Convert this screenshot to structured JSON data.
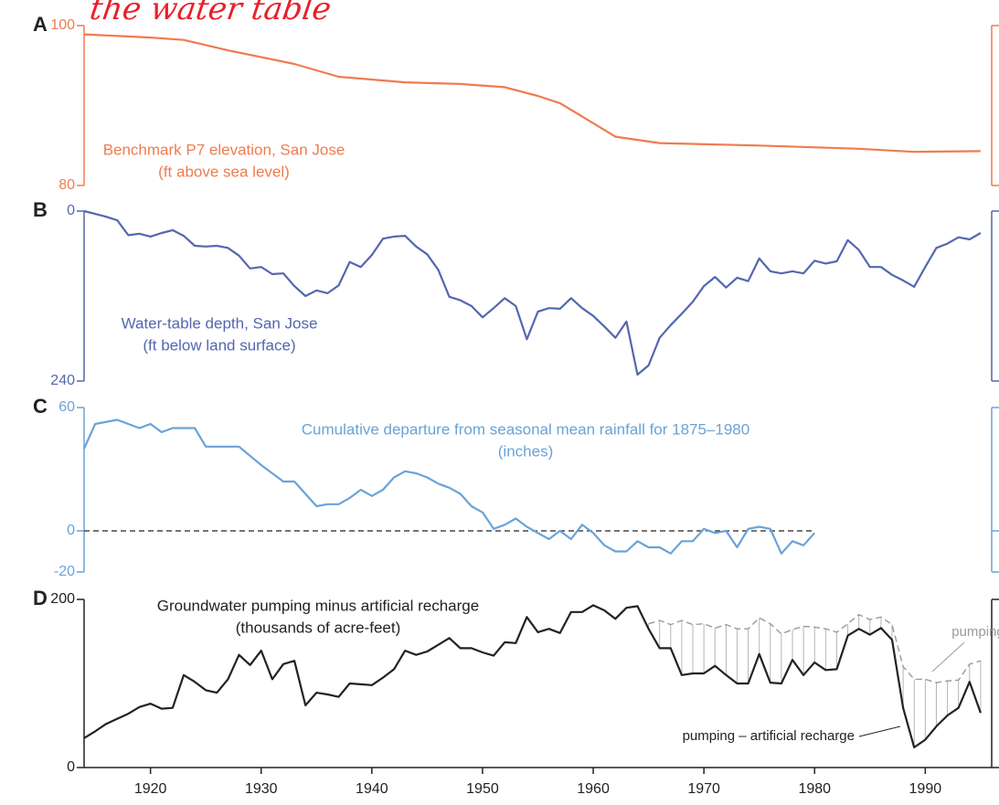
{
  "chart_data": [
    {
      "type": "line",
      "panel": "A",
      "handwritten_note": "the water table",
      "title": [
        "Benchmark P7 elevation, San Jose",
        "(ft above sea level)"
      ],
      "color": "#f07b4f",
      "xlim": [
        1914,
        1996
      ],
      "ylim": [
        80,
        100
      ],
      "yticks": [
        80,
        100
      ],
      "x": [
        1914,
        1920,
        1923,
        1927,
        1933,
        1937,
        1943,
        1948,
        1952,
        1955,
        1957,
        1960,
        1962,
        1966,
        1975,
        1984,
        1989,
        1995
      ],
      "values": [
        98.9,
        98.5,
        98.2,
        96.9,
        95.2,
        93.6,
        92.9,
        92.7,
        92.3,
        91.2,
        90.3,
        87.8,
        86.1,
        85.3,
        85.0,
        84.6,
        84.2,
        84.3
      ]
    },
    {
      "type": "line",
      "panel": "B",
      "title": [
        "Water-table depth, San Jose",
        "(ft below land surface)"
      ],
      "color": "#5467b0",
      "xlim": [
        1914,
        1996
      ],
      "ylim": [
        240,
        0
      ],
      "yticks": [
        240,
        0
      ],
      "x": [
        1914,
        1915,
        1916,
        1917,
        1918,
        1919,
        1920,
        1921,
        1922,
        1923,
        1924,
        1925,
        1926,
        1927,
        1928,
        1929,
        1930,
        1931,
        1932,
        1933,
        1934,
        1935,
        1936,
        1937,
        1938,
        1939,
        1940,
        1941,
        1942,
        1943,
        1944,
        1945,
        1946,
        1947,
        1948,
        1949,
        1950,
        1951,
        1952,
        1953,
        1954,
        1955,
        1956,
        1957,
        1958,
        1959,
        1960,
        1961,
        1962,
        1963,
        1964,
        1965,
        1966,
        1967,
        1968,
        1969,
        1970,
        1971,
        1972,
        1973,
        1974,
        1975,
        1976,
        1977,
        1978,
        1979,
        1980,
        1981,
        1982,
        1983,
        1984,
        1985,
        1986,
        1987,
        1988,
        1989,
        1990,
        1991,
        1992,
        1993,
        1994,
        1995
      ],
      "values": [
        0,
        4,
        8,
        13,
        34,
        32,
        36,
        31,
        27,
        35,
        49,
        50,
        49,
        52,
        63,
        81,
        79,
        89,
        88,
        106,
        120,
        112,
        116,
        105,
        72,
        79,
        62,
        39,
        36,
        35,
        50,
        61,
        83,
        121,
        126,
        134,
        150,
        137,
        123,
        134,
        181,
        142,
        137,
        138,
        123,
        137,
        148,
        163,
        179,
        156,
        231,
        218,
        179,
        161,
        145,
        128,
        106,
        93,
        108,
        94,
        99,
        67,
        85,
        88,
        85,
        88,
        70,
        74,
        71,
        41,
        55,
        79,
        79,
        90,
        98,
        107,
        79,
        52,
        46,
        37,
        40,
        31
      ]
    },
    {
      "type": "line",
      "panel": "C",
      "title": [
        "Cumulative departure from seasonal mean rainfall for 1875–1980",
        "(inches)"
      ],
      "color": "#6aa3d8",
      "xlim": [
        1914,
        1996
      ],
      "ylim": [
        -20,
        60
      ],
      "yticks": [
        -20,
        0,
        60
      ],
      "hline": 0,
      "x": [
        1914,
        1915,
        1917,
        1919,
        1920,
        1921,
        1922,
        1924,
        1925,
        1928,
        1930,
        1932,
        1933,
        1935,
        1936,
        1937,
        1938,
        1939,
        1940,
        1941,
        1942,
        1943,
        1944,
        1945,
        1946,
        1947,
        1948,
        1949,
        1950,
        1951,
        1952,
        1953,
        1954,
        1955,
        1956,
        1957,
        1958,
        1959,
        1960,
        1961,
        1962,
        1963,
        1964,
        1965,
        1966,
        1967,
        1968,
        1969,
        1970,
        1971,
        1972,
        1973,
        1974,
        1975,
        1976,
        1977,
        1978,
        1979,
        1980
      ],
      "values": [
        40,
        52,
        54,
        50,
        52,
        48,
        50,
        50,
        41,
        41,
        32,
        24,
        24,
        12,
        13,
        13,
        16,
        20,
        17,
        20,
        26,
        29,
        28,
        26,
        23,
        21,
        18,
        12,
        9,
        1,
        3,
        6,
        2,
        -1,
        -4,
        0,
        -4,
        3,
        -1,
        -7,
        -10,
        -10,
        -5,
        -8,
        -8,
        -11,
        -5,
        -5,
        1,
        -1,
        0,
        -8,
        1,
        2,
        1,
        -11,
        -5,
        -7,
        -1
      ]
    },
    {
      "type": "line",
      "panel": "D",
      "title": [
        "Groundwater pumping minus artificial recharge",
        "(thousands of acre-feet)"
      ],
      "xlim": [
        1914,
        1996
      ],
      "ylim": [
        0,
        200
      ],
      "yticks": [
        0,
        200
      ],
      "xticks": [
        1920,
        1930,
        1940,
        1950,
        1960,
        1970,
        1980,
        1990
      ],
      "x": [
        1914,
        1915,
        1916,
        1917,
        1918,
        1919,
        1920,
        1921,
        1922,
        1923,
        1924,
        1925,
        1926,
        1927,
        1928,
        1929,
        1930,
        1931,
        1932,
        1933,
        1934,
        1935,
        1936,
        1937,
        1938,
        1939,
        1940,
        1941,
        1942,
        1943,
        1944,
        1945,
        1946,
        1947,
        1948,
        1949,
        1950,
        1951,
        1952,
        1953,
        1954,
        1955,
        1956,
        1957,
        1958,
        1959,
        1960,
        1961,
        1962,
        1963,
        1964,
        1965,
        1966,
        1967,
        1968,
        1969,
        1970,
        1971,
        1972,
        1973,
        1974,
        1975,
        1976,
        1977,
        1978,
        1979,
        1980,
        1981,
        1982,
        1983,
        1984,
        1985,
        1986,
        1987,
        1988,
        1989,
        1990,
        1991,
        1992,
        1993,
        1994,
        1995
      ],
      "series": [
        {
          "name": "pumping – artificial recharge",
          "color": "#222222",
          "style": "solid",
          "values": [
            35,
            43,
            52,
            58,
            64,
            72,
            76,
            70,
            71,
            110,
            102,
            92,
            89,
            105,
            134,
            122,
            139,
            105,
            123,
            127,
            74,
            89,
            87,
            84,
            100,
            99,
            98,
            107,
            117,
            139,
            134,
            138,
            146,
            154,
            142,
            142,
            137,
            133,
            149,
            148,
            179,
            161,
            165,
            160,
            185,
            185,
            193,
            187,
            177,
            190,
            192,
            165,
            142,
            142,
            110,
            112,
            112,
            121,
            110,
            100,
            100,
            135,
            101,
            100,
            128,
            110,
            125,
            116,
            117,
            157,
            165,
            158,
            166,
            152,
            71,
            24,
            33,
            49,
            62,
            71,
            102,
            65
          ]
        },
        {
          "name": "pumping",
          "color": "#9a9a9a",
          "style": "dashed",
          "values": [
            null,
            null,
            null,
            null,
            null,
            null,
            null,
            null,
            null,
            null,
            null,
            null,
            null,
            null,
            null,
            null,
            null,
            null,
            null,
            null,
            null,
            null,
            null,
            null,
            null,
            null,
            null,
            null,
            null,
            null,
            null,
            null,
            null,
            null,
            null,
            null,
            null,
            null,
            null,
            null,
            null,
            null,
            null,
            null,
            null,
            null,
            null,
            null,
            null,
            null,
            null,
            171,
            175,
            170,
            175,
            170,
            171,
            166,
            170,
            165,
            165,
            178,
            171,
            159,
            164,
            168,
            167,
            165,
            161,
            171,
            182,
            176,
            179,
            170,
            120,
            105,
            105,
            101,
            103,
            104,
            123,
            127
          ]
        }
      ]
    }
  ]
}
